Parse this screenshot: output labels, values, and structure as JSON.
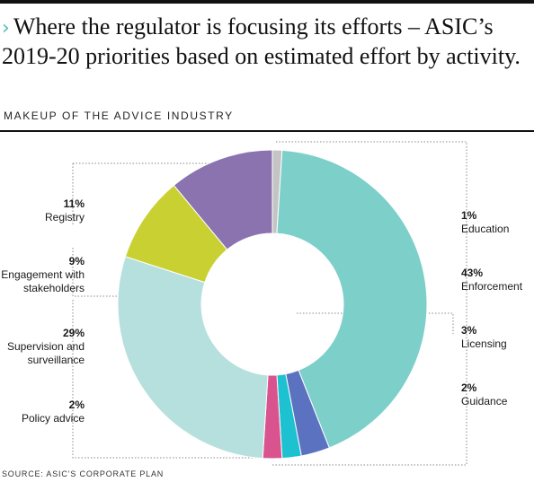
{
  "header": {
    "title_chevron": "›",
    "title": "Where the regulator is focusing its efforts – ASIC’s 2019-20 priorities based on estimated effort by activity.",
    "subtitle": "MAKEUP OF THE ADVICE INDUSTRY"
  },
  "source": "SOURCE: ASIC’S CORPORATE PLAN",
  "chart_data": {
    "type": "pie",
    "title": "Where the regulator is focusing its efforts – ASIC’s 2019-20 priorities based on estimated effort by activity.",
    "subtitle": "MAKEUP OF THE ADVICE INDUSTRY",
    "donut": true,
    "slices": [
      {
        "name": "Education",
        "value": 1,
        "label": "1%",
        "color": "#c4c4c4"
      },
      {
        "name": "Enforcement",
        "value": 43,
        "label": "43%",
        "color": "#7dcfca"
      },
      {
        "name": "Licensing",
        "value": 3,
        "label": "3%",
        "color": "#5b72c1"
      },
      {
        "name": "Guidance",
        "value": 2,
        "label": "2%",
        "color": "#1dc1cf"
      },
      {
        "name": "Policy advice",
        "value": 2,
        "label": "2%",
        "color": "#d9548e"
      },
      {
        "name": "Supervision and surveillance",
        "value": 29,
        "label": "29%",
        "color": "#b5e0de"
      },
      {
        "name": "Engagement with stakeholders",
        "value": 9,
        "label": "9%",
        "color": "#c9d132"
      },
      {
        "name": "Registry",
        "value": 11,
        "label": "11%",
        "color": "#8b73b0"
      }
    ]
  }
}
